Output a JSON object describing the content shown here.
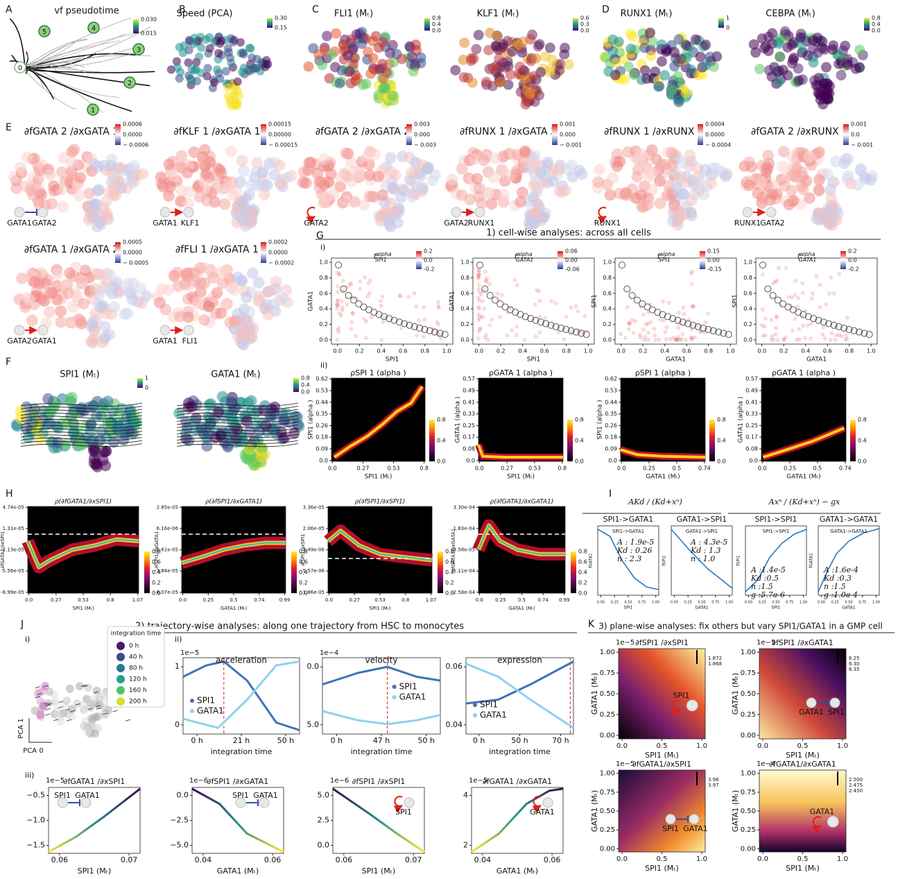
{
  "letters": [
    "A",
    "B",
    "C",
    "D",
    "E",
    "F",
    "G",
    "H",
    "I",
    "J",
    "K"
  ],
  "A": {
    "title": "vf pseudotime",
    "nodes": [
      "0",
      "1",
      "2",
      "3",
      "4",
      "5"
    ],
    "colorbar": [
      "0.030",
      "0.015"
    ]
  },
  "embeddings": [
    {
      "title": "Speed (PCA)",
      "colorbar": [
        "0.30",
        "0.15"
      ]
    },
    {
      "title": "FLI1 (Mₜ)",
      "colorbar": [
        "0.8",
        "0.4",
        "0.0"
      ]
    },
    {
      "title": "KLF1 (Mₜ)",
      "colorbar": [
        "0.6",
        "0.3",
        "0.0"
      ]
    },
    {
      "title": "RUNX1 (Mₜ)",
      "colorbar": [
        "1",
        "0"
      ]
    },
    {
      "title": "CEBPA (Mₜ)",
      "colorbar": [
        "0.8",
        "0.4",
        "0.0"
      ]
    }
  ],
  "E": {
    "plots": [
      {
        "title": "∂fGATA 2 /∂xGATA 1",
        "colorbar": [
          "0.0006",
          "0.0000",
          "− 0.0006"
        ],
        "genes": [
          "GATA1",
          "GATA2"
        ]
      },
      {
        "title": "∂fKLF 1 /∂xGATA 1",
        "colorbar": [
          "0.00015",
          "0.00000",
          "− 0.00015"
        ],
        "genes": [
          "GATA1",
          "KLF1"
        ]
      },
      {
        "title": "∂fGATA 2 /∂xGATA 2",
        "colorbar": [
          "0.003",
          "0.000",
          "− 0.003"
        ],
        "genes": [
          "GATA2"
        ]
      },
      {
        "title": "∂fRUNX 1 /∂xGATA 2",
        "colorbar": [
          "0.001",
          "0.000",
          "− 0.001"
        ],
        "genes": [
          "GATA2",
          "RUNX1"
        ]
      },
      {
        "title": "∂fRUNX 1 /∂xRUNX 1",
        "colorbar": [
          "0.0004",
          "0.0000",
          "− 0.0004"
        ],
        "genes": [
          "RUNX1"
        ]
      },
      {
        "title": "∂fGATA 2 /∂xRUNX 1",
        "colorbar": [
          "0.001",
          "0.0",
          "− 0.001"
        ],
        "genes": [
          "RUNX1",
          "GATA2"
        ]
      },
      {
        "title": "∂fGATA 1 /∂xGATA 2",
        "colorbar": [
          "0.0005",
          "0.0000",
          "− 0.0005"
        ],
        "genes": [
          "GATA2",
          "GATA1"
        ]
      },
      {
        "title": "∂fFLI 1 /∂xGATA 1",
        "colorbar": [
          "0.0002",
          "0.0000",
          "− 0.0002"
        ],
        "genes": [
          "GATA1",
          "FLI1"
        ]
      }
    ]
  },
  "F": {
    "plots": [
      {
        "title": "SPI1 (Mₜ)",
        "colorbar": [
          "1",
          "0"
        ]
      },
      {
        "title": "GATA1 (Mₜ)",
        "colorbar": [
          "0.8",
          "0.4",
          "0.0"
        ]
      }
    ]
  },
  "G": {
    "header": "1) cell-wise analyses: across all cells",
    "sub": [
      "i)",
      "ii)"
    ],
    "scatter": [
      {
        "title": [
          "f",
          "alpha",
          "SPI1"
        ],
        "colorbar": [
          "0.2",
          "0.0",
          "-0.2"
        ],
        "xticks": [
          "0.0",
          "0.2",
          "0.4",
          "0.6",
          "0.8",
          "1.0"
        ],
        "yticks": [
          "0.0",
          "0.2",
          "0.4",
          "0.6",
          "0.8",
          "1.0"
        ],
        "xlabel": "SPI1",
        "ylabel": "GATA1"
      },
      {
        "title": [
          "f",
          "alpha",
          "GATA1"
        ],
        "colorbar": [
          "0.06",
          "0.00",
          "-0.06"
        ],
        "xticks": [
          "0.0",
          "0.2",
          "0.4",
          "0.6",
          "0.8",
          "1.0"
        ],
        "yticks": [
          "0.0",
          "0.2",
          "0.4",
          "0.6",
          "0.8",
          "1.0"
        ],
        "xlabel": "SPI1",
        "ylabel": "GATA1"
      },
      {
        "title": [
          "f",
          "alpha",
          "SPI1"
        ],
        "colorbar": [
          "0.15",
          "0.00",
          "-0.15"
        ],
        "xticks": [
          "0.0",
          "0.2",
          "0.4",
          "0.6",
          "0.8",
          "1.0"
        ],
        "yticks": [
          "0.0",
          "0.2",
          "0.4",
          "0.6",
          "0.8",
          "1.0"
        ],
        "xlabel": "GATA1",
        "ylabel": "SPI1"
      },
      {
        "title": [
          "f",
          "alpha",
          "GATA1"
        ],
        "colorbar": [
          "0.2",
          "0.0",
          "-0.2"
        ],
        "xticks": [
          "0.0",
          "0.2",
          "0.4",
          "0.6",
          "0.8",
          "1.0"
        ],
        "yticks": [
          "0.0",
          "0.2",
          "0.4",
          "0.6",
          "0.8",
          "1.0"
        ],
        "xlabel": "GATA1",
        "ylabel": "SPI1"
      }
    ],
    "density": [
      {
        "title": "ρSPI 1 (alpha )",
        "colorbar": [
          "0.8",
          "0.4",
          "0.0"
        ],
        "xticks": [
          "0.0",
          "0.27",
          "0.53",
          "0.8"
        ],
        "yticks": [
          "0.0",
          "0.09",
          "0.18",
          "0.26",
          "0.35",
          "0.44",
          "0.53",
          "0.62"
        ],
        "xlabel": "SPI1 (Mₜ)",
        "ylabel": "SPI1 (alpha )"
      },
      {
        "title": "ρGATA 1 (alpha )",
        "colorbar": [
          "0.8",
          "0.4",
          "0.0"
        ],
        "xticks": [
          "0.0",
          "0.27",
          "0.53",
          "0.8"
        ],
        "yticks": [
          "0.0",
          "0.08",
          "0.17",
          "0.25",
          "0.33",
          "0.41",
          "0.49",
          "0.57"
        ],
        "xlabel": "SPI1 (Mₜ)",
        "ylabel": "GATA1 (alpha )"
      },
      {
        "title": "ρSPI 1 (alpha )",
        "colorbar": [
          "0.8",
          "0.4",
          "0.0"
        ],
        "xticks": [
          "0.0",
          "0.25",
          "0.5",
          "0.74"
        ],
        "yticks": [
          "0.0",
          "0.09",
          "0.18",
          "0.26",
          "0.35",
          "0.44",
          "0.53",
          "0.62"
        ],
        "xlabel": "GATA1 (Mₜ)",
        "ylabel": "SPI1 (alpha )"
      },
      {
        "title": "ρGATA 1 (alpha )",
        "colorbar": [
          "0.8",
          "0.4",
          "0.0"
        ],
        "xticks": [
          "0.0",
          "0.25",
          "0.5",
          "0.74"
        ],
        "yticks": [
          "0.0",
          "0.08",
          "0.17",
          "0.25",
          "0.33",
          "0.41",
          "0.49",
          "0.57"
        ],
        "xlabel": "GATA1 (Mₜ)",
        "ylabel": "GATA1 (alpha )"
      }
    ]
  },
  "H": {
    "plots": [
      {
        "title": "ρ(∂fGATA1/∂xSPI1)",
        "colorbar": [
          "0.8",
          "0.6",
          "0.4",
          "0.2",
          "0.0"
        ],
        "xticks": [
          "0.0",
          "0.27",
          "0.53",
          "0.8",
          "1.07"
        ],
        "yticks": [
          "-8.99e-05",
          "-5.56e-05",
          "-2.13e-05",
          "1.31e-05",
          "4.74e-05"
        ],
        "xlabel": "SPI1 (Mₜ)",
        "ylabel": "∂fGATA1/∂xSPI1"
      },
      {
        "title": "ρ(∂fSPI1/∂xGATA1)",
        "colorbar": [
          "0.8",
          "0.6",
          "0.4",
          "0.2",
          "0.0"
        ],
        "xticks": [
          "0.0",
          "0.25",
          "0.5",
          "0.74",
          "0.99"
        ],
        "yticks": [
          "-6.07e-05",
          "-3.84e-05",
          "-1.61e-05",
          "6.16e-06",
          "2.85e-05"
        ],
        "xlabel": "GATA1 (Mₜ)",
        "ylabel": "∂fSPI1/∂xGATA1"
      },
      {
        "title": "ρ(∂fSPI1/∂xSPI1)",
        "colorbar": [
          "0.8",
          "0.6",
          "0.4",
          "0.2",
          "0.0"
        ],
        "xticks": [
          "0.0",
          "0.27",
          "0.53",
          "0.8",
          "1.07"
        ],
        "yticks": [
          "-1.86e-05",
          "-5.57e-06",
          "7.49e-06",
          "2.06e-05",
          "3.36e-05"
        ],
        "xlabel": "SPI1 (Mₜ)",
        "ylabel": "∂fSPI1/∂xSPI1"
      },
      {
        "title": "ρ(∂fGATA1/∂xGATA1)",
        "colorbar": [
          "0.8",
          "0.6",
          "0.4",
          "0.2",
          "0.0"
        ],
        "xticks": [
          "0.0",
          "0.25",
          "0.5",
          "0.74",
          "0.99"
        ],
        "yticks": [
          "-2.58e-04",
          "-1.11e-04",
          "3.58e-05",
          "1.83e-04",
          "3.30e-04"
        ],
        "xlabel": "GATA1 (Mₜ)",
        "ylabel": "∂fGATA1/∂xGATA1"
      }
    ]
  },
  "I": {
    "headers": [
      "AKd / (Kd+xⁿ)",
      "Axⁿ / (Kd+xⁿ) − gx"
    ],
    "plots": [
      {
        "title": "SPI1->GATA1",
        "params": [
          "A  : 1.9e-5",
          "Kd : 0.26",
          "n  : 2.3"
        ],
        "xticks": [
          "0.00",
          "0.25",
          "0.50",
          "0.75",
          "1.00"
        ],
        "xlabel": "SPI1",
        "ylabel": "fGATA1"
      },
      {
        "title": "GATA1->SPI1",
        "params": [
          "A  : 4.3e-5",
          "Kd : 1.3",
          "n  : 1.0"
        ],
        "xticks": [
          "0.00",
          "0.25",
          "0.50",
          "0.75",
          "1.00"
        ],
        "xlabel": "GATA1",
        "ylabel": "fSPI1"
      },
      {
        "title": "SPI1->SPI1",
        "params": [
          "A  :1.4e-5",
          "Kd :0.5",
          "n  :1.5",
          "g  :5.7e-6"
        ],
        "xticks": [
          "0.00",
          "0.25",
          "0.50",
          "0.75",
          "1.00"
        ],
        "xlabel": "SPI1",
        "ylabel": "fSPI1"
      },
      {
        "title": "GATA1->GATA1",
        "params": [
          "A  :1.6e-4",
          "Kd :0.3",
          "n  :1.5",
          "g  :1.0e-4"
        ],
        "xticks": [
          "0.00",
          "0.25",
          "0.50",
          "0.75",
          "1.00"
        ],
        "xlabel": "GATA1",
        "ylabel": "fGATA1"
      }
    ]
  },
  "J": {
    "header": "2) trajectory-wise analyses: along one trajectory from HSC to monocytes",
    "sub": [
      "i)",
      "ii)",
      "iii)"
    ],
    "legend_title": "integration time",
    "legend": [
      "0 h",
      "40 h",
      "80 h",
      "120 h",
      "160 h",
      "200 h"
    ],
    "pca": [
      "PCA 1",
      "PCA 0"
    ],
    "lines": [
      {
        "title": "acceleration",
        "exponent": "1e−5",
        "yticks": [
          "0",
          "1"
        ],
        "xticks": [
          "0 h",
          "21 h",
          "50 h"
        ],
        "xlabel": "integration time",
        "legend": [
          "SPI1",
          "GATA1"
        ]
      },
      {
        "title": "velocity",
        "exponent": "1e−4",
        "yticks": [
          "5.0",
          "0.0"
        ],
        "xticks": [
          "0 h",
          "47 h",
          "50 h"
        ],
        "xlabel": "integration time",
        "legend": [
          "SPI1",
          "GATA1"
        ]
      },
      {
        "title": "expression",
        "yticks": [
          "0.04",
          "0.06"
        ],
        "xticks": [
          "0 h",
          "50 h",
          "70 h"
        ],
        "xlabel": "integration time",
        "legend": [
          "SPI1",
          "GATA1"
        ]
      }
    ],
    "gradients": [
      {
        "title": "∂fGATA1 /∂xSPI1",
        "exponent": "1e−5",
        "yticks": [
          "−1.5",
          "−1.0",
          "−0.5"
        ],
        "xticks": [
          "0.06",
          "0.07"
        ],
        "xlabel": "SPI1 (Mₜ)",
        "genes": [
          "SPI1",
          "GATA1"
        ]
      },
      {
        "title": "∂fSPI1 /∂xGATA1",
        "exponent": "1e−6",
        "yticks": [
          "−5.0",
          "−2.5",
          "0.0"
        ],
        "xticks": [
          "0.04",
          "0.06"
        ],
        "xlabel": "GATA1 (Mₜ)",
        "genes": [
          "SPI1",
          "GATA1"
        ]
      },
      {
        "title": "∂fSPI1 /∂xSPI1",
        "exponent": "1e−6",
        "yticks": [
          "0.0",
          "2.5",
          "5.0"
        ],
        "xticks": [
          "0.06",
          "0.07"
        ],
        "xlabel": "SPI1 (Mₜ)",
        "genes": [
          "SPI1"
        ]
      },
      {
        "title": "∂fGATA1 /∂xGATA1",
        "exponent": "1e−5",
        "yticks": [
          "2",
          "4"
        ],
        "xticks": [
          "0.04",
          "0.06"
        ],
        "xlabel": "GATA1 (Mₜ)",
        "genes": [
          "GATA1"
        ]
      }
    ]
  },
  "K": {
    "header": "3) plane-wise analyses: fix others but vary SPI1/GATA1 in a GMP cell",
    "plots": [
      {
        "title": "∂fSPI1 /∂xSPI1",
        "exponent": "1e−5",
        "colorbar": [
          "1.872",
          "1.868"
        ],
        "xticks": [
          "0.0",
          "0.5",
          "1.0"
        ],
        "yticks": [
          "0.00",
          "0.25",
          "0.50",
          "0.75",
          "1.00"
        ],
        "xlabel": "SPI1 (Mₜ)",
        "ylabel": "GATA1 (Mₜ)",
        "genes": [
          "SPI1"
        ]
      },
      {
        "title": "∂fSPI1 /∂xGATA1",
        "exponent": "1e−5",
        "colorbar": [
          "6.25",
          "6.30",
          "6.35"
        ],
        "xticks": [
          "0.0",
          "0.5",
          "1.0"
        ],
        "yticks": [
          "0.00",
          "0.25",
          "0.50",
          "0.75",
          "1.00"
        ],
        "xlabel": "SPI1 (Mₜ)",
        "ylabel": "GATA1 (Mₜ)",
        "genes": [
          "GATA1",
          "SPI1"
        ]
      },
      {
        "title": "∂fGATA1/∂xSPI1",
        "exponent": "1e−5",
        "colorbar": [
          "3.96",
          "3.97"
        ],
        "xticks": [
          "0.0",
          "0.5",
          "1.0"
        ],
        "yticks": [
          "0.00",
          "0.25",
          "0.50",
          "0.75",
          "1.00"
        ],
        "xlabel": "SPI1 (Mₜ)",
        "ylabel": "GATA1 (Mₜ)",
        "genes": [
          "SPI1",
          "GATA1"
        ]
      },
      {
        "title": "∂fGATA1/∂xGATA1",
        "exponent": "1e−4",
        "colorbar": [
          "2.500",
          "2.475",
          "2.450"
        ],
        "xticks": [
          "0.0",
          "0.5",
          "1.0"
        ],
        "yticks": [
          "0.00",
          "0.25",
          "0.50",
          "0.75",
          "1.00"
        ],
        "xlabel": "SPI1 (Mₜ)",
        "ylabel": "GATA1 (Mₜ)",
        "genes": [
          "GATA1"
        ]
      }
    ]
  }
}
